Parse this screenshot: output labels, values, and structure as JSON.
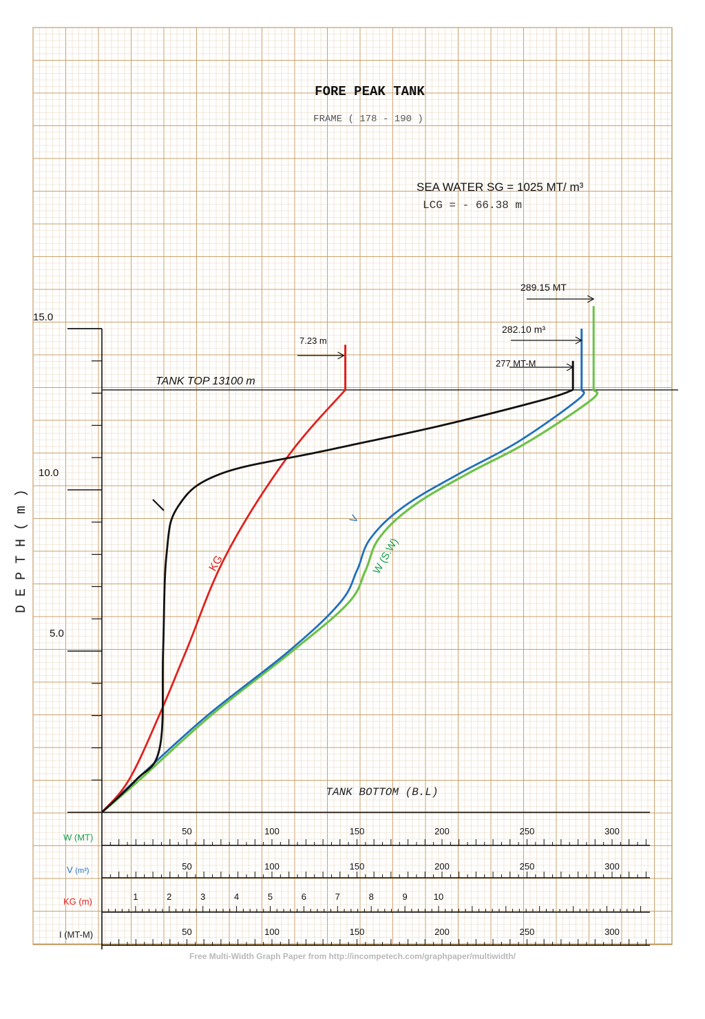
{
  "chart_data": {
    "type": "line",
    "title": "FORE PEAK TANK",
    "subtitle": "FRAME ( 178 - 190 )",
    "notes": [
      "SEA WATER SG = 1025 MT/ m³",
      "LCG = - 66.38 m"
    ],
    "ylabel": "D E P T H ( m )",
    "ylim": [
      0,
      15.5
    ],
    "yticks": [
      "15.0",
      "10.0",
      "5.0"
    ],
    "yticks_values": [
      15,
      10,
      5
    ],
    "tank_top_label": "TANK TOP 13100 m",
    "tank_top_depth": 13.1,
    "tank_bottom_label": "TANK BOTTOM (B.L)",
    "grid": true,
    "scales": [
      {
        "id": "W",
        "label": "W (MT)",
        "color": "#1aa050",
        "ticks": [
          "50",
          "100",
          "150",
          "200",
          "250",
          "300"
        ],
        "tick_values": [
          50,
          100,
          150,
          200,
          250,
          300
        ],
        "max": 340
      },
      {
        "id": "V",
        "label_main": "V",
        "label_unit": "(m³)",
        "color": "#1f6fbf",
        "ticks": [
          "50",
          "100",
          "150",
          "200",
          "250",
          "300"
        ],
        "tick_values": [
          50,
          100,
          150,
          200,
          250,
          300
        ],
        "max": 340
      },
      {
        "id": "KG",
        "label": "KG (m)",
        "color": "#e0201e",
        "ticks": [
          "1",
          "2",
          "3",
          "4",
          "5",
          "6",
          "7",
          "8",
          "9",
          "10"
        ],
        "tick_values": [
          1,
          2,
          3,
          4,
          5,
          6,
          7,
          8,
          9,
          10
        ],
        "max": 17
      },
      {
        "id": "I",
        "label": "I (MT-M)",
        "color": "#222222",
        "ticks": [
          "50",
          "100",
          "150",
          "200",
          "250",
          "300"
        ],
        "tick_values": [
          50,
          100,
          150,
          200,
          250,
          300
        ],
        "max": 340
      }
    ],
    "series": [
      {
        "name": "V",
        "scale": "V",
        "color": "#1f6fbf",
        "points": [
          [
            0,
            0
          ],
          [
            20,
            1
          ],
          [
            62,
            3
          ],
          [
            110,
            5
          ],
          [
            140,
            6.5
          ],
          [
            150,
            7.5
          ],
          [
            158,
            8.5
          ],
          [
            178,
            9.5
          ],
          [
            210,
            10.5
          ],
          [
            245,
            11.5
          ],
          [
            280,
            12.8
          ],
          [
            282.1,
            13.1
          ],
          [
            282.1,
            15
          ]
        ]
      },
      {
        "name": "W (S.W)",
        "scale": "W",
        "color": "#6cc24a",
        "points": [
          [
            0,
            0
          ],
          [
            22,
            1
          ],
          [
            64,
            3
          ],
          [
            112,
            5
          ],
          [
            145,
            6.5
          ],
          [
            155,
            7.5
          ],
          [
            163,
            8.5
          ],
          [
            183,
            9.5
          ],
          [
            215,
            10.5
          ],
          [
            251,
            11.5
          ],
          [
            288,
            12.8
          ],
          [
            289.15,
            13.1
          ],
          [
            289.15,
            15.7
          ]
        ]
      },
      {
        "name": "KG",
        "scale": "KG",
        "color": "#e0201e",
        "points": [
          [
            0,
            0
          ],
          [
            0.8,
            1
          ],
          [
            1.7,
            3
          ],
          [
            2.5,
            5
          ],
          [
            3.7,
            8
          ],
          [
            5.5,
            11
          ],
          [
            7.23,
            13.1
          ],
          [
            7.23,
            14.5
          ]
        ]
      },
      {
        "name": "I",
        "scale": "I",
        "color": "#111111",
        "points": [
          [
            0,
            0
          ],
          [
            20,
            1
          ],
          [
            34,
            2
          ],
          [
            36,
            5
          ],
          [
            38,
            8
          ],
          [
            45,
            9.5
          ],
          [
            70,
            10.5
          ],
          [
            130,
            11.2
          ],
          [
            200,
            12
          ],
          [
            260,
            12.8
          ],
          [
            277,
            13.1
          ],
          [
            277,
            14
          ]
        ]
      }
    ],
    "annotations": {
      "w_max": "289.15 MT",
      "v_max": "282.10 m³",
      "i_max": "277 MT-M",
      "kg_max": "7.23 m"
    },
    "curve_labels": {
      "V": "V",
      "W": "W (S.W)",
      "KG": "KG"
    }
  },
  "footer": "Free Multi-Width Graph Paper from http://incompetech.com/graphpaper/multiwidth/"
}
